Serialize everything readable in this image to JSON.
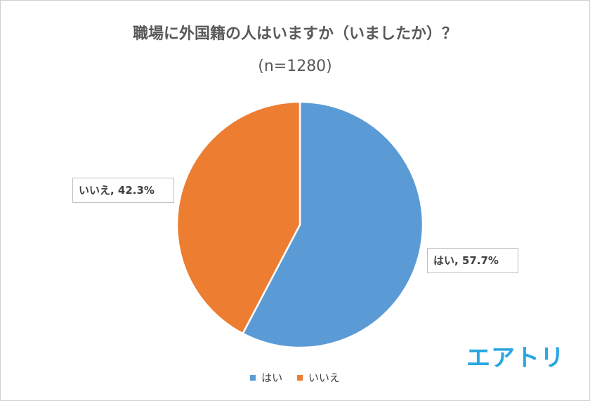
{
  "chart_data": {
    "type": "pie",
    "title": "職場に外国籍の人はいますか（いましたか）？",
    "subtitle": "(n=1280)",
    "categories": [
      "はい",
      "いいえ"
    ],
    "values": [
      57.7,
      42.3
    ],
    "unit": "%",
    "colors": [
      "#5b9bd5",
      "#ed7d31"
    ],
    "data_labels": [
      "はい, 57.7%",
      "いいえ, 42.3%"
    ],
    "legend": {
      "position": "bottom",
      "entries": [
        "はい",
        "いいえ"
      ]
    }
  },
  "brand": {
    "logo_text": "エアトリ",
    "color": "#29a7e1"
  }
}
